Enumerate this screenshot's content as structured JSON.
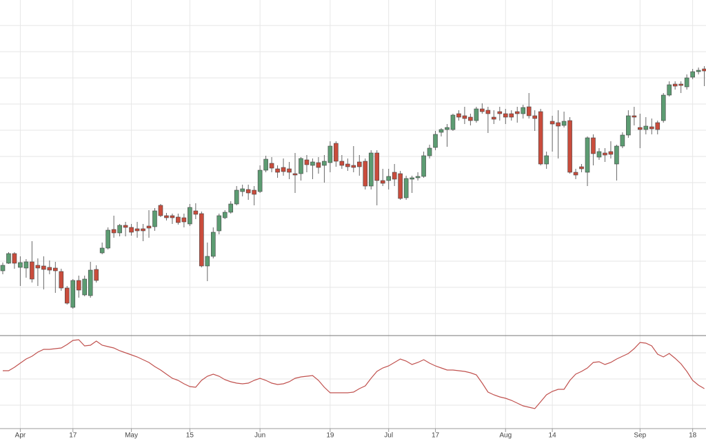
{
  "chart_data": [
    {
      "type": "candlestick",
      "categories": [
        null,
        null,
        null,
        "Apr",
        null,
        null,
        null,
        null,
        null,
        null,
        null,
        null,
        "17",
        null,
        null,
        null,
        null,
        null,
        null,
        null,
        null,
        null,
        "May",
        null,
        null,
        null,
        null,
        null,
        null,
        null,
        null,
        null,
        "15",
        null,
        null,
        null,
        null,
        null,
        null,
        null,
        null,
        null,
        null,
        null,
        "Jun",
        null,
        null,
        null,
        null,
        null,
        null,
        null,
        null,
        null,
        null,
        null,
        "19",
        null,
        null,
        null,
        null,
        null,
        null,
        null,
        null,
        null,
        "Jul",
        null,
        null,
        null,
        null,
        null,
        null,
        null,
        "17",
        null,
        null,
        null,
        null,
        null,
        null,
        null,
        null,
        null,
        null,
        null,
        "Aug",
        null,
        null,
        null,
        null,
        null,
        null,
        null,
        "14",
        null,
        null,
        null,
        null,
        null,
        null,
        null,
        null,
        null,
        null,
        null,
        null,
        null,
        null,
        "Sep",
        null,
        null,
        null,
        null,
        null,
        null,
        null,
        null,
        "18",
        null,
        null
      ],
      "open": [
        10.7,
        11.8,
        13.2,
        11.2,
        11.1,
        12.0,
        11.5,
        11.4,
        11.2,
        11.1,
        10.6,
        8.2,
        5.4,
        9.3,
        7.2,
        7.1,
        10.9,
        13.3,
        14.0,
        16.7,
        16.2,
        17.3,
        17.0,
        16.8,
        16.8,
        17.2,
        17.1,
        20.2,
        18.7,
        18.7,
        18.5,
        18.4,
        17.5,
        19.4,
        19.0,
        11.4,
        12.8,
        16.5,
        18.4,
        19.2,
        20.4,
        22.2,
        22.5,
        22.4,
        22.2,
        25.3,
        26.3,
        25.5,
        25.7,
        25.5,
        24.8,
        24.8,
        26.8,
        26.0,
        26.4,
        26.0,
        26.4,
        29.2,
        26.6,
        26.2,
        26.0,
        26.5,
        26.6,
        23.0,
        27.8,
        23.8,
        23.8,
        25.0,
        24.8,
        21.3,
        24.0,
        24.2,
        24.4,
        27.4,
        28.6,
        30.8,
        31.2,
        31.2,
        33.5,
        33.2,
        33.0,
        32.5,
        34.2,
        34.0,
        33.0,
        33.8,
        33.5,
        33.5,
        33.8,
        33.5,
        34.5,
        33.2,
        33.8,
        26.2,
        32.4,
        32.2,
        31.8,
        32.5,
        25.0,
        25.8,
        25.0,
        30.0,
        27.2,
        27.8,
        28.0,
        26.2,
        28.8,
        30.4,
        33.2,
        31.5,
        31.2,
        31.6,
        32.2,
        32.5,
        36.2,
        37.8,
        37.8,
        37.4,
        38.8,
        39.6,
        40.0
      ],
      "high": [
        11.9,
        13.4,
        13.4,
        12.8,
        12.4,
        15.0,
        12.5,
        12.8,
        12.2,
        12.0,
        11.0,
        8.5,
        9.5,
        10.0,
        10.0,
        12.0,
        11.5,
        14.8,
        17.0,
        18.7,
        17.5,
        17.8,
        17.5,
        17.8,
        17.5,
        19.5,
        19.8,
        20.4,
        19.1,
        19.0,
        19.0,
        19.0,
        20.4,
        20.5,
        19.3,
        14.8,
        17.0,
        19.0,
        19.5,
        20.8,
        23.0,
        23.2,
        23.2,
        23.0,
        26.0,
        27.4,
        27.2,
        26.0,
        27.0,
        26.5,
        27.8,
        27.2,
        27.5,
        27.0,
        27.2,
        27.5,
        29.5,
        29.5,
        27.5,
        27.0,
        28.8,
        27.5,
        27.0,
        28.2,
        28.2,
        25.5,
        25.5,
        26.2,
        25.2,
        24.5,
        24.5,
        25.0,
        28.0,
        29.0,
        31.0,
        31.4,
        32.0,
        33.5,
        34.0,
        34.5,
        33.5,
        34.5,
        35.0,
        34.5,
        34.0,
        34.5,
        34.2,
        34.0,
        34.5,
        34.8,
        36.5,
        34.0,
        34.2,
        28.0,
        33.2,
        34.0,
        33.8,
        33.0,
        25.5,
        26.2,
        30.2,
        30.5,
        28.5,
        28.5,
        29.5,
        29.0,
        30.8,
        34.0,
        34.5,
        33.5,
        33.0,
        32.8,
        32.5,
        36.5,
        38.2,
        38.2,
        38.2,
        39.2,
        40.0,
        40.2,
        40.4
      ],
      "low": [
        10.2,
        11.7,
        11.0,
        8.5,
        9.7,
        9.0,
        8.5,
        8.0,
        10.2,
        7.5,
        7.8,
        5.8,
        5.2,
        6.8,
        7.0,
        6.8,
        9.0,
        13.1,
        13.8,
        15.5,
        15.7,
        15.7,
        15.8,
        15.5,
        15.0,
        15.5,
        16.5,
        18.5,
        18.0,
        17.5,
        17.4,
        17.0,
        17.2,
        18.2,
        11.2,
        9.2,
        12.5,
        16.0,
        18.2,
        19.0,
        20.2,
        21.5,
        21.0,
        20.2,
        22.0,
        25.0,
        25.0,
        24.2,
        24.5,
        24.0,
        22.0,
        23.8,
        25.0,
        24.0,
        24.8,
        23.5,
        25.0,
        25.8,
        25.5,
        25.2,
        25.0,
        24.5,
        22.5,
        22.5,
        20.2,
        23.0,
        22.5,
        23.0,
        21.0,
        21.0,
        22.0,
        23.8,
        24.2,
        27.0,
        28.2,
        30.2,
        28.7,
        31.0,
        32.5,
        32.0,
        31.8,
        32.2,
        33.5,
        30.7,
        32.0,
        32.5,
        32.0,
        32.5,
        32.2,
        32.8,
        32.8,
        31.0,
        26.0,
        25.5,
        28.0,
        27.0,
        31.5,
        24.8,
        24.0,
        25.0,
        23.0,
        26.0,
        26.8,
        26.5,
        27.0,
        23.8,
        28.5,
        30.0,
        31.8,
        28.5,
        30.5,
        30.5,
        30.5,
        32.2,
        36.0,
        37.0,
        36.5,
        37.0,
        38.5,
        39.2,
        37.5
      ],
      "close": [
        11.5,
        13.2,
        11.8,
        11.9,
        12.0,
        9.5,
        11.1,
        10.9,
        10.8,
        10.7,
        8.2,
        6.0,
        9.3,
        7.9,
        9.5,
        10.8,
        9.3,
        14.0,
        16.6,
        16.2,
        17.3,
        17.0,
        16.3,
        16.5,
        16.5,
        16.9,
        19.4,
        18.7,
        18.4,
        18.4,
        17.7,
        17.8,
        19.9,
        18.9,
        11.4,
        12.8,
        16.3,
        18.7,
        19.2,
        20.4,
        22.4,
        22.6,
        22.0,
        21.8,
        25.3,
        26.9,
        25.6,
        25.0,
        25.1,
        25.0,
        24.6,
        27.0,
        26.1,
        26.5,
        25.7,
        26.6,
        28.8,
        26.6,
        26.0,
        25.8,
        25.7,
        25.8,
        23.0,
        27.8,
        23.8,
        23.4,
        24.4,
        24.0,
        21.2,
        24.1,
        24.2,
        24.4,
        27.4,
        28.5,
        30.5,
        31.2,
        31.5,
        33.3,
        33.0,
        32.8,
        32.5,
        34.2,
        33.8,
        33.5,
        32.7,
        33.5,
        33.0,
        33.0,
        33.5,
        34.4,
        33.2,
        32.8,
        26.2,
        27.4,
        32.0,
        31.7,
        32.4,
        25.0,
        24.6,
        25.5,
        30.0,
        27.7,
        28.0,
        27.5,
        27.6,
        28.8,
        30.4,
        33.2,
        33.0,
        31.2,
        31.7,
        31.3,
        31.2,
        36.2,
        37.7,
        37.5,
        37.6,
        38.7,
        39.6,
        39.8,
        39.7
      ],
      "up_color": "#5c9c72",
      "down_color": "#c94c3c",
      "ylim": [
        1.3,
        50
      ],
      "ygrid": [
        4.5,
        8.3,
        12.1,
        15.9,
        19.7,
        23.5,
        27.3,
        31.1,
        34.9,
        38.7,
        42.5,
        46.3
      ],
      "grid": true
    },
    {
      "type": "line",
      "color": "#c0504d",
      "values": [
        82,
        82,
        87,
        93,
        99,
        103,
        109,
        113,
        113,
        114,
        115,
        120,
        126,
        127,
        118,
        119,
        125,
        119,
        117,
        115,
        111,
        108,
        105,
        102,
        98,
        94,
        88,
        83,
        77,
        71,
        68,
        63,
        59,
        58,
        68,
        74,
        77,
        74,
        69,
        66,
        64,
        63,
        64,
        68,
        71,
        68,
        64,
        62,
        63,
        66,
        71,
        73,
        74,
        75,
        68,
        58,
        50,
        50,
        50,
        50,
        51,
        56,
        60,
        71,
        81,
        86,
        89,
        94,
        99,
        96,
        91,
        94,
        98,
        93,
        89,
        86,
        83,
        83,
        82,
        81,
        79,
        76,
        64,
        51,
        47,
        44,
        42,
        39,
        35,
        31,
        29,
        27,
        37,
        47,
        52,
        55,
        55,
        68,
        77,
        81,
        86,
        94,
        95,
        91,
        94,
        99,
        103,
        107,
        114,
        123,
        122,
        118,
        106,
        102,
        107,
        100,
        92,
        81,
        68,
        61,
        56
      ],
      "ylim": [
        0,
        133
      ],
      "ygrid": [
        32,
        70,
        108
      ],
      "grid": true
    }
  ]
}
